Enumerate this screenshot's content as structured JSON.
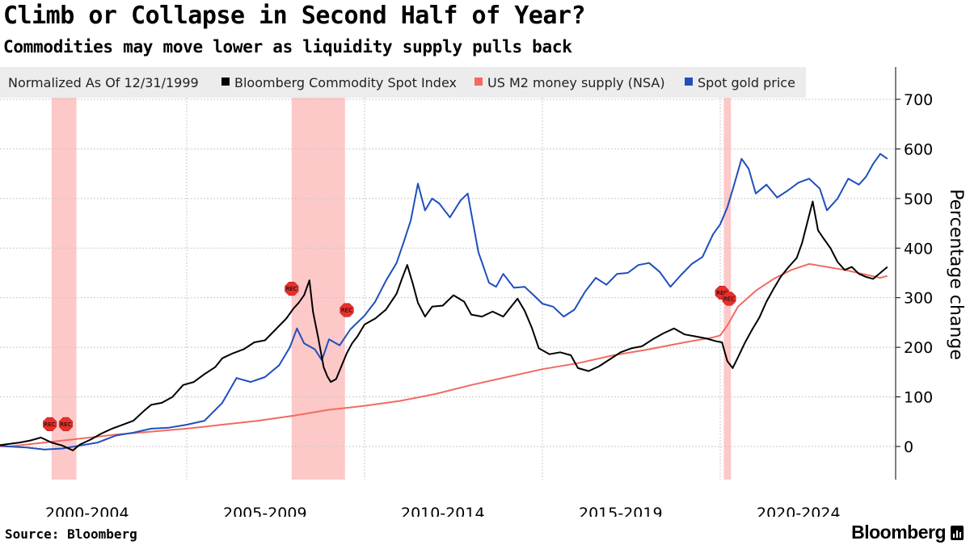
{
  "header": {
    "title": "Climb or Collapse in Second Half of Year?",
    "subtitle": "Commodities may move lower as liquidity supply pulls back"
  },
  "footer": {
    "source": "Source: Bloomberg",
    "brand": "Bloomberg"
  },
  "colors": {
    "commodity": "#000000",
    "m2": "#f26a62",
    "gold": "#1f4fbd",
    "recession": "#fdc2c2",
    "rec_marker": "#e8302b",
    "grid": "#c8c8c8"
  },
  "chart_data": {
    "type": "line",
    "title": "Climb or Collapse in Second Half of Year?",
    "subtitle": "Commodities may move lower as liquidity supply pulls back",
    "legend": {
      "note": "Normalized As Of 12/31/1999",
      "placement": "top-left",
      "items": [
        {
          "name": "Bloomberg Commodity Spot Index",
          "color": "#000000"
        },
        {
          "name": "US M2 money supply (NSA)",
          "color": "#f26a62"
        },
        {
          "name": "Spot gold price",
          "color": "#1f4fbd"
        }
      ]
    },
    "ylabel": "Percentage change",
    "ylim": [
      -65,
      770
    ],
    "yticks": [
      0,
      100,
      200,
      300,
      400,
      500,
      600,
      700
    ],
    "xlim": [
      1999.75,
      2024.75
    ],
    "xtick_labels": [
      "2000-2004",
      "2005-2009",
      "2010-2014",
      "2015-2019",
      "2020-2024"
    ],
    "grid": true,
    "recessions": [
      {
        "start": 2001.2,
        "end": 2001.9,
        "label": "REC"
      },
      {
        "start": 2007.95,
        "end": 2009.45,
        "label": "REC"
      },
      {
        "start": 2020.1,
        "end": 2020.3,
        "label": "REC"
      }
    ],
    "rec_markers": [
      {
        "x": 2001.15,
        "y": 45,
        "label": "REC"
      },
      {
        "x": 2001.6,
        "y": 45,
        "label": "REC"
      },
      {
        "x": 2007.95,
        "y": 318,
        "label": "REC"
      },
      {
        "x": 2009.5,
        "y": 275,
        "label": "REC"
      },
      {
        "x": 2020.05,
        "y": 310,
        "label": "REC"
      },
      {
        "x": 2020.25,
        "y": 298,
        "label": "REC"
      }
    ],
    "series": [
      {
        "name": "Bloomberg Commodity Spot Index",
        "color": "#000000",
        "x": [
          1999.75,
          2000.0,
          2000.3,
          2000.6,
          2000.9,
          2001.2,
          2001.5,
          2001.8,
          2002.0,
          2002.3,
          2002.6,
          2002.9,
          2003.2,
          2003.5,
          2003.8,
          2004.0,
          2004.3,
          2004.6,
          2004.9,
          2005.2,
          2005.5,
          2005.8,
          2006.0,
          2006.3,
          2006.6,
          2006.9,
          2007.2,
          2007.5,
          2007.8,
          2008.0,
          2008.15,
          2008.3,
          2008.45,
          2008.55,
          2008.7,
          2008.85,
          2008.95,
          2009.05,
          2009.2,
          2009.35,
          2009.5,
          2009.65,
          2009.8,
          2010.0,
          2010.3,
          2010.6,
          2010.9,
          2011.05,
          2011.2,
          2011.35,
          2011.5,
          2011.7,
          2011.9,
          2012.2,
          2012.5,
          2012.8,
          2013.0,
          2013.3,
          2013.6,
          2013.9,
          2014.1,
          2014.3,
          2014.5,
          2014.7,
          2014.9,
          2015.2,
          2015.5,
          2015.8,
          2016.0,
          2016.3,
          2016.6,
          2016.9,
          2017.2,
          2017.5,
          2017.8,
          2018.1,
          2018.4,
          2018.7,
          2019.0,
          2019.3,
          2019.6,
          2019.9,
          2020.05,
          2020.2,
          2020.35,
          2020.5,
          2020.7,
          2020.9,
          2021.1,
          2021.3,
          2021.5,
          2021.7,
          2021.9,
          2022.0,
          2022.15,
          2022.3,
          2022.45,
          2022.6,
          2022.75,
          2022.9,
          2023.1,
          2023.3,
          2023.5,
          2023.7,
          2023.9,
          2024.1,
          2024.3,
          2024.5,
          2024.7
        ],
        "y": [
          3,
          5,
          8,
          12,
          18,
          8,
          2,
          -8,
          4,
          14,
          26,
          36,
          44,
          52,
          72,
          84,
          88,
          100,
          124,
          130,
          146,
          160,
          178,
          188,
          196,
          210,
          214,
          236,
          258,
          278,
          290,
          305,
          335,
          272,
          218,
          160,
          142,
          130,
          136,
          162,
          188,
          208,
          222,
          246,
          258,
          276,
          308,
          338,
          366,
          330,
          290,
          262,
          282,
          284,
          305,
          292,
          266,
          262,
          272,
          262,
          280,
          298,
          274,
          240,
          198,
          186,
          190,
          184,
          158,
          152,
          162,
          176,
          190,
          198,
          202,
          216,
          228,
          238,
          226,
          222,
          218,
          212,
          210,
          172,
          158,
          180,
          210,
          236,
          260,
          292,
          318,
          342,
          360,
          368,
          380,
          410,
          452,
          494,
          436,
          420,
          400,
          372,
          356,
          362,
          348,
          342,
          338,
          350,
          362
        ]
      },
      {
        "name": "US M2 money supply (NSA)",
        "color": "#f26a62",
        "x": [
          1999.75,
          2000.0,
          2001.0,
          2002.0,
          2003.0,
          2004.0,
          2005.0,
          2006.0,
          2007.0,
          2008.0,
          2009.0,
          2009.5,
          2010.0,
          2011.0,
          2012.0,
          2013.0,
          2014.0,
          2015.0,
          2016.0,
          2017.0,
          2018.0,
          2019.0,
          2019.8,
          2020.0,
          2020.2,
          2020.5,
          2021.0,
          2021.5,
          2022.0,
          2022.5,
          2023.0,
          2023.5,
          2024.0,
          2024.5,
          2024.7
        ],
        "y": [
          0,
          0,
          8,
          16,
          24,
          30,
          36,
          44,
          52,
          62,
          74,
          78,
          82,
          92,
          106,
          124,
          140,
          156,
          168,
          184,
          196,
          210,
          220,
          224,
          244,
          282,
          314,
          338,
          356,
          368,
          362,
          356,
          348,
          340,
          344
        ]
      },
      {
        "name": "Spot gold price",
        "color": "#1f4fbd",
        "x": [
          1999.75,
          2000.0,
          2000.5,
          2001.0,
          2001.5,
          2002.0,
          2002.5,
          2003.0,
          2003.5,
          2004.0,
          2004.5,
          2005.0,
          2005.5,
          2006.0,
          2006.4,
          2006.8,
          2007.2,
          2007.6,
          2007.9,
          2008.1,
          2008.3,
          2008.6,
          2008.8,
          2009.0,
          2009.3,
          2009.6,
          2010.0,
          2010.3,
          2010.6,
          2010.9,
          2011.1,
          2011.3,
          2011.5,
          2011.7,
          2011.9,
          2012.1,
          2012.4,
          2012.7,
          2012.9,
          2013.2,
          2013.5,
          2013.7,
          2013.9,
          2014.2,
          2014.5,
          2014.8,
          2015.0,
          2015.3,
          2015.6,
          2015.9,
          2016.2,
          2016.5,
          2016.8,
          2017.1,
          2017.4,
          2017.7,
          2018.0,
          2018.3,
          2018.6,
          2018.9,
          2019.2,
          2019.5,
          2019.8,
          2020.0,
          2020.2,
          2020.4,
          2020.6,
          2020.8,
          2021.0,
          2021.3,
          2021.6,
          2021.9,
          2022.2,
          2022.5,
          2022.8,
          2023.0,
          2023.3,
          2023.6,
          2023.9,
          2024.1,
          2024.3,
          2024.5,
          2024.7
        ],
        "y": [
          2,
          0,
          -2,
          -6,
          -4,
          2,
          8,
          22,
          28,
          36,
          38,
          44,
          52,
          88,
          138,
          130,
          140,
          164,
          200,
          238,
          208,
          196,
          174,
          216,
          204,
          236,
          264,
          292,
          334,
          370,
          412,
          456,
          530,
          476,
          500,
          490,
          462,
          496,
          510,
          392,
          330,
          322,
          348,
          320,
          322,
          302,
          288,
          282,
          262,
          276,
          312,
          340,
          326,
          348,
          350,
          366,
          370,
          352,
          322,
          346,
          368,
          382,
          428,
          448,
          482,
          530,
          580,
          560,
          510,
          528,
          502,
          516,
          532,
          540,
          520,
          476,
          500,
          540,
          528,
          544,
          570,
          590,
          580
        ]
      }
    ]
  }
}
